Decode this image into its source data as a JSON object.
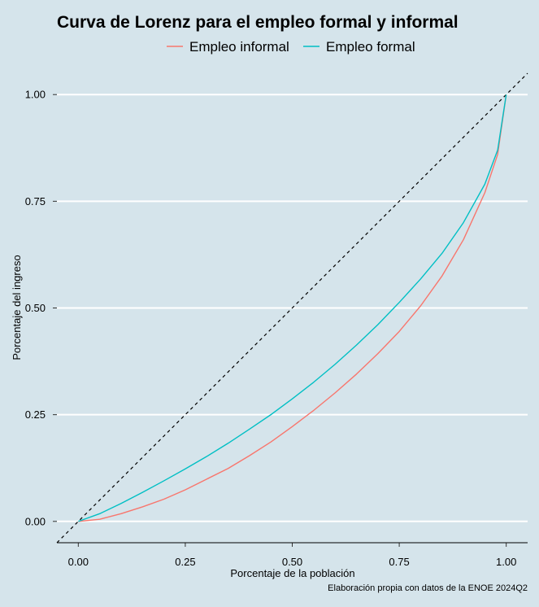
{
  "chart_data": {
    "type": "line",
    "title": "Curva de Lorenz para el empleo formal y informal",
    "xlabel": "Porcentaje de la población",
    "ylabel": "Porcentaje del ingreso",
    "caption": "Elaboración propia con datos de la ENOE 2024Q2",
    "xlim": [
      -0.05,
      1.05
    ],
    "ylim": [
      -0.05,
      1.05
    ],
    "x_ticks": [
      "0.00",
      "0.25",
      "0.50",
      "0.75",
      "1.00"
    ],
    "y_ticks": [
      "0.00",
      "0.25",
      "0.50",
      "0.75",
      "1.00"
    ],
    "grid": "horizontal major lines",
    "legend_position": "top",
    "reference_line": {
      "style": "dashed",
      "color": "#000000",
      "from": [
        -0.05,
        -0.05
      ],
      "to": [
        1.05,
        1.05
      ]
    },
    "series": [
      {
        "name": "Empleo informal",
        "color": "#f8766d",
        "x": [
          0,
          0.05,
          0.1,
          0.15,
          0.2,
          0.25,
          0.3,
          0.35,
          0.4,
          0.45,
          0.5,
          0.55,
          0.6,
          0.65,
          0.7,
          0.75,
          0.8,
          0.85,
          0.9,
          0.95,
          0.98,
          1.0
        ],
        "y": [
          0,
          0.005,
          0.018,
          0.034,
          0.052,
          0.074,
          0.099,
          0.124,
          0.154,
          0.186,
          0.222,
          0.26,
          0.301,
          0.345,
          0.393,
          0.445,
          0.505,
          0.575,
          0.66,
          0.77,
          0.86,
          1.0
        ]
      },
      {
        "name": "Empleo formal",
        "color": "#00bfc4",
        "x": [
          0,
          0.05,
          0.1,
          0.15,
          0.2,
          0.25,
          0.3,
          0.35,
          0.4,
          0.45,
          0.5,
          0.55,
          0.6,
          0.65,
          0.7,
          0.75,
          0.8,
          0.85,
          0.9,
          0.95,
          0.98,
          1.0
        ],
        "y": [
          0,
          0.018,
          0.042,
          0.068,
          0.095,
          0.123,
          0.152,
          0.183,
          0.216,
          0.25,
          0.287,
          0.326,
          0.368,
          0.413,
          0.461,
          0.513,
          0.568,
          0.628,
          0.7,
          0.79,
          0.87,
          1.0
        ]
      }
    ]
  }
}
